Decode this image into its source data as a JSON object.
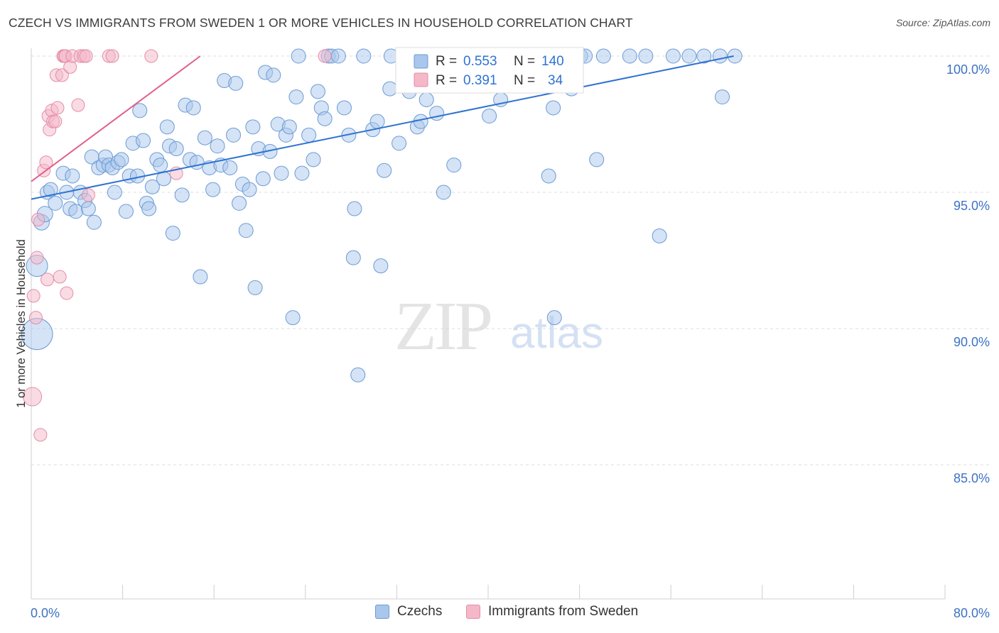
{
  "title": "CZECH VS IMMIGRANTS FROM SWEDEN 1 OR MORE VEHICLES IN HOUSEHOLD CORRELATION CHART",
  "source": "Source: ZipAtlas.com",
  "watermark": {
    "zip": "ZIP",
    "atlas": "atlas"
  },
  "colors": {
    "blue_fill": "#a9c7ec",
    "blue_stroke": "#6c9ad6",
    "blue_line": "#2e72d2",
    "pink_fill": "#f4b8c9",
    "pink_stroke": "#e58ca7",
    "pink_line": "#e0608a",
    "axis_text": "#3d72c4",
    "grid": "#dcdcdc"
  },
  "chart_data": {
    "type": "scatter",
    "title": "CZECH VS IMMIGRANTS FROM SWEDEN 1 OR MORE VEHICLES IN HOUSEHOLD CORRELATION CHART",
    "xlabel": "",
    "ylabel": "1 or more Vehicles in Household",
    "xlim": [
      0,
      80
    ],
    "ylim": [
      80,
      100.8
    ],
    "x_tick_labels": [
      "0.0%",
      "80.0%"
    ],
    "y_ticks": [
      100,
      95,
      90,
      85
    ],
    "y_tick_labels": [
      "100.0%",
      "95.0%",
      "90.0%",
      "85.0%"
    ],
    "grid": true,
    "legend_stats": [
      {
        "r_label": "R =",
        "r_value": "0.553",
        "n_label": "N =",
        "n_value": "140"
      },
      {
        "r_label": "R =",
        "r_value": "0.391",
        "n_label": "N =",
        "n_value": "34"
      }
    ],
    "series": [
      {
        "name": "Czechs",
        "color": "#6c9ad6",
        "trend": {
          "x": [
            0,
            61.5
          ],
          "y": [
            94.75,
            100.0
          ]
        },
        "points": [
          [
            0.5,
            89.8,
            22
          ],
          [
            0.5,
            92.3,
            15
          ],
          [
            0.9,
            93.9,
            11
          ],
          [
            1.2,
            94.2,
            11
          ],
          [
            1.4,
            95.0,
            10
          ],
          [
            1.7,
            95.1,
            10
          ],
          [
            2.1,
            94.6,
            10
          ],
          [
            2.8,
            95.7,
            10
          ],
          [
            3.1,
            95.0,
            10
          ],
          [
            3.4,
            94.4,
            10
          ],
          [
            3.6,
            95.6,
            10
          ],
          [
            3.9,
            94.3,
            10
          ],
          [
            4.3,
            95.0,
            10
          ],
          [
            4.7,
            94.7,
            10
          ],
          [
            5.0,
            94.4,
            10
          ],
          [
            5.3,
            96.3,
            10
          ],
          [
            5.5,
            93.9,
            10
          ],
          [
            5.9,
            95.9,
            10
          ],
          [
            6.3,
            96.0,
            10
          ],
          [
            6.5,
            96.3,
            10
          ],
          [
            6.8,
            96.0,
            10
          ],
          [
            7.1,
            95.9,
            10
          ],
          [
            7.3,
            95.0,
            10
          ],
          [
            7.6,
            96.1,
            10
          ],
          [
            7.9,
            96.2,
            10
          ],
          [
            8.3,
            94.3,
            10
          ],
          [
            8.6,
            95.6,
            10
          ],
          [
            8.9,
            96.8,
            10
          ],
          [
            9.3,
            95.6,
            10
          ],
          [
            9.5,
            98.0,
            10
          ],
          [
            9.8,
            96.9,
            10
          ],
          [
            10.1,
            94.6,
            10
          ],
          [
            10.3,
            94.4,
            10
          ],
          [
            10.6,
            95.2,
            10
          ],
          [
            11.0,
            96.2,
            10
          ],
          [
            11.3,
            96.0,
            10
          ],
          [
            11.6,
            95.5,
            10
          ],
          [
            11.9,
            97.4,
            10
          ],
          [
            12.1,
            96.7,
            10
          ],
          [
            12.4,
            93.5,
            10
          ],
          [
            12.7,
            96.6,
            10
          ],
          [
            13.2,
            94.9,
            10
          ],
          [
            13.5,
            98.2,
            10
          ],
          [
            13.9,
            96.2,
            10
          ],
          [
            14.2,
            98.1,
            10
          ],
          [
            14.5,
            96.1,
            10
          ],
          [
            14.8,
            91.9,
            10
          ],
          [
            15.2,
            97.0,
            10
          ],
          [
            15.6,
            95.9,
            10
          ],
          [
            15.9,
            95.1,
            10
          ],
          [
            16.3,
            96.7,
            10
          ],
          [
            16.6,
            96.0,
            10
          ],
          [
            16.9,
            99.1,
            10
          ],
          [
            17.4,
            95.9,
            10
          ],
          [
            17.7,
            97.1,
            10
          ],
          [
            17.9,
            99.0,
            10
          ],
          [
            18.2,
            94.6,
            10
          ],
          [
            18.5,
            95.3,
            10
          ],
          [
            18.8,
            93.6,
            10
          ],
          [
            19.1,
            95.1,
            10
          ],
          [
            19.4,
            97.4,
            10
          ],
          [
            19.6,
            91.5,
            10
          ],
          [
            19.9,
            96.6,
            10
          ],
          [
            20.3,
            95.5,
            10
          ],
          [
            20.5,
            99.4,
            10
          ],
          [
            20.9,
            96.5,
            10
          ],
          [
            21.2,
            99.3,
            10
          ],
          [
            21.6,
            97.5,
            10
          ],
          [
            21.9,
            95.7,
            10
          ],
          [
            22.3,
            97.1,
            10
          ],
          [
            22.6,
            97.4,
            10
          ],
          [
            22.9,
            90.4,
            10
          ],
          [
            23.2,
            98.5,
            10
          ],
          [
            23.4,
            100.0,
            10
          ],
          [
            23.7,
            95.7,
            10
          ],
          [
            24.3,
            97.1,
            10
          ],
          [
            24.7,
            96.2,
            10
          ],
          [
            25.1,
            98.7,
            10
          ],
          [
            25.4,
            98.1,
            10
          ],
          [
            25.7,
            97.7,
            10
          ],
          [
            26.0,
            100.0,
            10
          ],
          [
            26.3,
            100.0,
            10
          ],
          [
            26.9,
            100.0,
            10
          ],
          [
            27.4,
            98.1,
            10
          ],
          [
            27.8,
            97.1,
            10
          ],
          [
            28.2,
            92.6,
            10
          ],
          [
            28.3,
            94.4,
            10
          ],
          [
            28.6,
            88.3,
            10
          ],
          [
            29.1,
            100.0,
            10
          ],
          [
            29.9,
            97.3,
            10
          ],
          [
            30.3,
            97.6,
            10
          ],
          [
            30.6,
            92.3,
            10
          ],
          [
            30.9,
            95.8,
            10
          ],
          [
            31.4,
            98.8,
            10
          ],
          [
            31.5,
            100.0,
            10
          ],
          [
            32.2,
            96.8,
            10
          ],
          [
            32.6,
            100.0,
            10
          ],
          [
            33.1,
            98.7,
            10
          ],
          [
            33.3,
            100.0,
            10
          ],
          [
            33.8,
            97.4,
            10
          ],
          [
            34.1,
            97.6,
            10
          ],
          [
            34.6,
            98.4,
            10
          ],
          [
            35.2,
            100.0,
            10
          ],
          [
            35.5,
            97.9,
            10
          ],
          [
            36.1,
            95.0,
            10
          ],
          [
            36.5,
            100.0,
            10
          ],
          [
            37.0,
            96.0,
            10
          ],
          [
            37.6,
            100.0,
            10
          ],
          [
            38.1,
            100.0,
            10
          ],
          [
            38.8,
            100.0,
            10
          ],
          [
            39.5,
            100.0,
            10
          ],
          [
            40.1,
            97.8,
            10
          ],
          [
            40.7,
            100.0,
            10
          ],
          [
            41.1,
            98.4,
            10
          ],
          [
            41.7,
            100.0,
            10
          ],
          [
            42.3,
            100.0,
            10
          ],
          [
            42.9,
            100.0,
            10
          ],
          [
            43.4,
            100.0,
            10
          ],
          [
            44.1,
            100.0,
            10
          ],
          [
            44.7,
            100.0,
            10
          ],
          [
            45.3,
            95.6,
            10
          ],
          [
            45.7,
            98.1,
            10
          ],
          [
            45.8,
            90.4,
            10
          ],
          [
            46.5,
            100.0,
            10
          ],
          [
            47.3,
            98.8,
            10
          ],
          [
            48.1,
            100.0,
            10
          ],
          [
            48.5,
            100.0,
            10
          ],
          [
            49.5,
            96.2,
            10
          ],
          [
            50.1,
            100.0,
            10
          ],
          [
            52.4,
            100.0,
            10
          ],
          [
            53.8,
            100.0,
            10
          ],
          [
            55.0,
            93.4,
            10
          ],
          [
            56.2,
            100.0,
            10
          ],
          [
            57.6,
            100.0,
            10
          ],
          [
            58.9,
            100.0,
            10
          ],
          [
            60.3,
            100.0,
            10
          ],
          [
            60.5,
            98.5,
            10
          ],
          [
            61.6,
            100.0,
            10
          ]
        ]
      },
      {
        "name": "Immigrants from Sweden",
        "color": "#e58ca7",
        "trend": {
          "x": [
            0,
            14.8
          ],
          "y": [
            95.4,
            100.0
          ]
        },
        "points": [
          [
            0.1,
            87.5,
            13
          ],
          [
            0.2,
            91.2,
            9
          ],
          [
            0.4,
            90.4,
            9
          ],
          [
            0.5,
            92.6,
            9
          ],
          [
            0.6,
            94.0,
            9
          ],
          [
            0.8,
            86.1,
            9
          ],
          [
            1.1,
            95.8,
            9
          ],
          [
            1.3,
            96.1,
            9
          ],
          [
            1.4,
            91.8,
            9
          ],
          [
            1.5,
            97.8,
            9
          ],
          [
            1.6,
            97.3,
            9
          ],
          [
            1.8,
            98.0,
            9
          ],
          [
            1.9,
            97.6,
            9
          ],
          [
            2.1,
            97.6,
            9
          ],
          [
            2.2,
            99.3,
            9
          ],
          [
            2.3,
            98.1,
            9
          ],
          [
            2.5,
            91.9,
            9
          ],
          [
            2.7,
            99.3,
            9
          ],
          [
            2.8,
            100.0,
            9
          ],
          [
            2.9,
            100.0,
            9
          ],
          [
            3.0,
            100.0,
            9
          ],
          [
            3.1,
            91.3,
            9
          ],
          [
            3.4,
            99.6,
            9
          ],
          [
            3.6,
            100.0,
            9
          ],
          [
            4.1,
            98.2,
            9
          ],
          [
            4.3,
            100.0,
            9
          ],
          [
            4.6,
            100.0,
            9
          ],
          [
            4.8,
            100.0,
            9
          ],
          [
            5.0,
            94.9,
            9
          ],
          [
            6.8,
            100.0,
            9
          ],
          [
            7.1,
            100.0,
            9
          ],
          [
            10.5,
            100.0,
            9
          ],
          [
            12.7,
            95.7,
            9
          ],
          [
            25.7,
            100.0,
            9
          ]
        ]
      }
    ]
  }
}
